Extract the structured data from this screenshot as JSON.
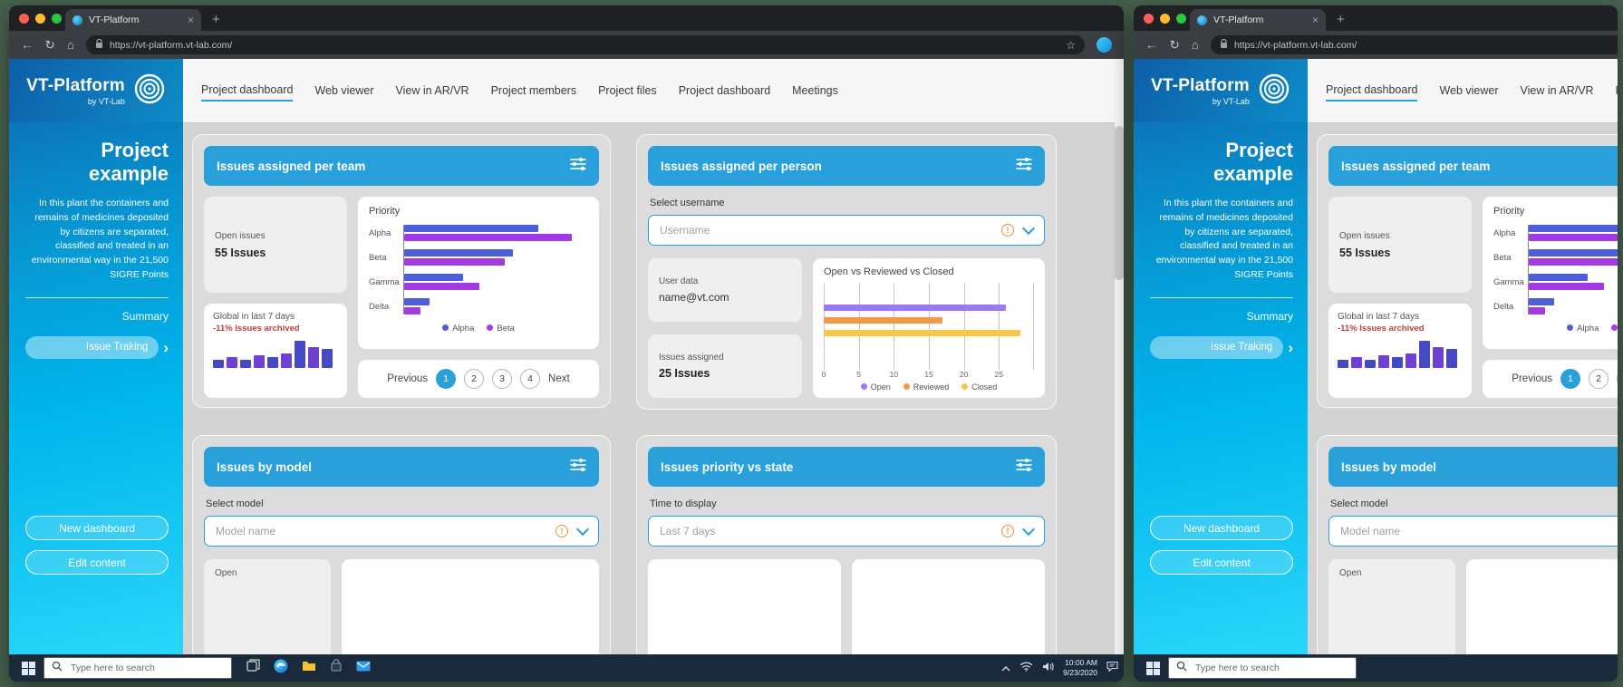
{
  "theme": {
    "accent": "#2aa0da",
    "card_header_blue": "#2aa0da",
    "sidebar_gradient_top": "#0d66ae",
    "sidebar_gradient_bottom": "#2bd6fa",
    "negative_red": "#b8403c"
  },
  "browser": {
    "tab_title": "VT-Platform",
    "url": "https://vt-platform.vt-lab.com/"
  },
  "logo": {
    "title": "VT-Platform",
    "subtitle": "by VT-Lab"
  },
  "nav": {
    "items": [
      {
        "label": "Project dashboard",
        "active": true
      },
      {
        "label": "Web viewer",
        "active": false
      },
      {
        "label": "View in AR/VR",
        "active": false
      },
      {
        "label": "Project members",
        "active": false
      },
      {
        "label": "Project files",
        "active": false
      },
      {
        "label": "Project dashboard",
        "active": false
      },
      {
        "label": "Meetings",
        "active": false
      }
    ]
  },
  "sidebar": {
    "project_title": "Project example",
    "description": "In this plant the containers and remains of medicines deposited by citizens are separated, classified and treated in an environmental way in the 21,500 SIGRE Points",
    "summary_label": "Summary",
    "issue_tracking_label": "Issue Traking",
    "chevron": "›",
    "new_dashboard_label": "New dashboard",
    "edit_content_label": "Edit content"
  },
  "cards": {
    "team": {
      "title": "Issues assigned per team",
      "open_issues_label": "Open issues",
      "open_issues_value": "55 Issues",
      "global_label": "Global in last 7 days",
      "global_value": "-11% Issues archived",
      "pagination": {
        "previous": "Previous",
        "next": "Next",
        "pages": [
          "1",
          "2",
          "3",
          "4"
        ],
        "active_page": "1"
      }
    },
    "person": {
      "title": "Issues assigned per person",
      "select_label": "Select username",
      "select_value": "Username",
      "user_data_label": "User data",
      "user_data_value": "name@vt.com",
      "issues_assigned_label": "Issues assigned",
      "issues_assigned_value": "25 Issues"
    },
    "model": {
      "title": "Issues by model",
      "select_label": "Select model",
      "select_value": "Model name",
      "open_label": "Open"
    },
    "priority_state": {
      "title": "Issues priority vs state",
      "select_label": "Time to display",
      "select_value": "Last 7 days"
    }
  },
  "chart_data": [
    {
      "type": "bar",
      "orientation": "horizontal",
      "title": "Priority",
      "categories": [
        "Alpha",
        "Beta",
        "Gamma",
        "Delta"
      ],
      "series": [
        {
          "name": "Alpha",
          "color": "#4d5ed8",
          "values": [
            16,
            13,
            7,
            3
          ]
        },
        {
          "name": "Beta",
          "color": "#a43ae4",
          "values": [
            20,
            12,
            9,
            2
          ]
        }
      ],
      "xlim": [
        0,
        22
      ],
      "legend": [
        "Alpha",
        "Beta"
      ],
      "legend_position": "bottom",
      "grid": false
    },
    {
      "type": "bar",
      "orientation": "horizontal",
      "title": "Open vs Reviewed vs Closed",
      "categories": [
        "Open",
        "Reviewed",
        "Closed"
      ],
      "values": [
        26,
        17,
        28
      ],
      "colors": [
        "#9b79f2",
        "#f09a47",
        "#f6c74b"
      ],
      "xticks": [
        0,
        5,
        10,
        15,
        20,
        25
      ],
      "xlim": [
        0,
        30
      ],
      "legend": [
        "Open",
        "Reviewed",
        "Closed"
      ],
      "legend_position": "bottom",
      "grid": true
    },
    {
      "type": "bar",
      "orientation": "vertical",
      "title": "Global in last 7 days",
      "values": [
        4,
        5,
        4,
        6,
        5,
        7,
        13,
        10,
        9
      ],
      "ylim": [
        0,
        13
      ],
      "colors": [
        "#4649c4",
        "#6f41d2"
      ],
      "grid": false
    }
  ],
  "taskbar": {
    "search_placeholder": "Type here to search",
    "time": "10:00 AM",
    "date": "9/23/2020",
    "icons": [
      "start",
      "search",
      "task-view",
      "edge",
      "file-explorer",
      "store",
      "mail"
    ],
    "tray_icons": [
      "caret-up",
      "wifi",
      "volume",
      "clock",
      "action-center"
    ]
  }
}
